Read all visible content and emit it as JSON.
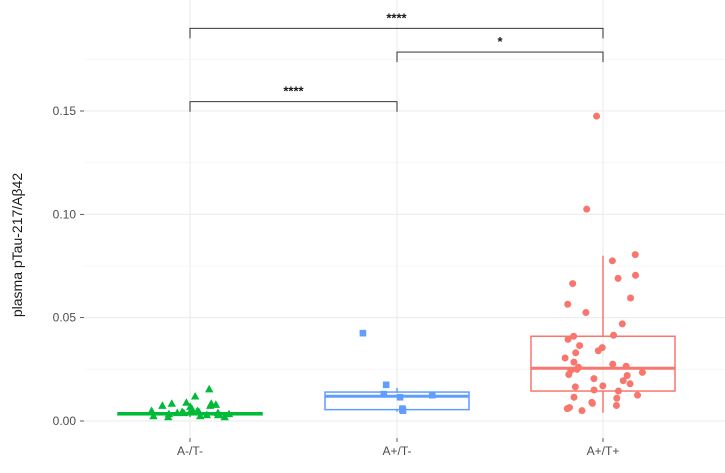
{
  "chart_data": {
    "type": "box",
    "title": "",
    "xlabel": "",
    "ylabel": "plasma pTau-217/Aβ42",
    "ylim": [
      -0.003,
      0.163
    ],
    "yticks": [
      0.0,
      0.05,
      0.1,
      0.15
    ],
    "ytick_labels": [
      "0.00",
      "0.05",
      "0.10",
      "0.15"
    ],
    "grid": true,
    "categories": [
      "A-/T-",
      "A+/T-",
      "A+/T+"
    ],
    "groups": [
      {
        "name": "A-/T-",
        "color": "#00BA38",
        "marker": "triangle",
        "box": {
          "q1": 0.003,
          "median": 0.0035,
          "q3": 0.004,
          "whisker_low": 0.002,
          "whisker_high": 0.0045
        },
        "points": [
          0.0155,
          0.012,
          0.009,
          0.0085,
          0.008,
          0.0075,
          0.007,
          0.006,
          0.0055,
          0.005,
          0.005,
          0.0045,
          0.0045,
          0.004,
          0.004,
          0.004,
          0.0035,
          0.0035,
          0.003,
          0.003,
          0.003,
          0.0025,
          0.0025,
          0.002,
          0.002,
          0.0085,
          0.0075
        ]
      },
      {
        "name": "A+/T-",
        "color": "#619CFF",
        "marker": "square",
        "box": {
          "q1": 0.0055,
          "median": 0.012,
          "q3": 0.014,
          "whisker_low": 0.0045,
          "whisker_high": 0.016
        },
        "points": [
          0.0425,
          0.0175,
          0.013,
          0.0125,
          0.0115,
          0.006,
          0.0055,
          0.005
        ]
      },
      {
        "name": "A+/T+",
        "color": "#F8766D",
        "marker": "circle",
        "box": {
          "q1": 0.0145,
          "median": 0.0255,
          "q3": 0.041,
          "whisker_low": 0.004,
          "whisker_high": 0.08
        },
        "points": [
          0.1475,
          0.1025,
          0.0805,
          0.0775,
          0.0705,
          0.069,
          0.0665,
          0.0595,
          0.0565,
          0.0525,
          0.047,
          0.0415,
          0.041,
          0.0395,
          0.0365,
          0.0355,
          0.034,
          0.033,
          0.0305,
          0.0285,
          0.0275,
          0.0265,
          0.026,
          0.025,
          0.0245,
          0.0235,
          0.0225,
          0.022,
          0.0205,
          0.0195,
          0.018,
          0.017,
          0.0165,
          0.015,
          0.0145,
          0.0125,
          0.0115,
          0.011,
          0.009,
          0.0085,
          0.0075,
          0.0065,
          0.006,
          0.005
        ]
      }
    ],
    "significance": [
      {
        "from": "A-/T-",
        "to": "A+/T-",
        "y": 0.1545,
        "label": "****"
      },
      {
        "from": "A+/T-",
        "to": "A+/T+",
        "y": 0.1785,
        "label": "*"
      },
      {
        "from": "A-/T-",
        "to": "A+/T+",
        "y": 0.19,
        "label": "****"
      }
    ]
  },
  "colors": {
    "grid_major": "#ebebeb",
    "grid_minor": "#f5f5f5",
    "axis_text": "#4d4d4d",
    "bracket": "#1a1a1a"
  }
}
